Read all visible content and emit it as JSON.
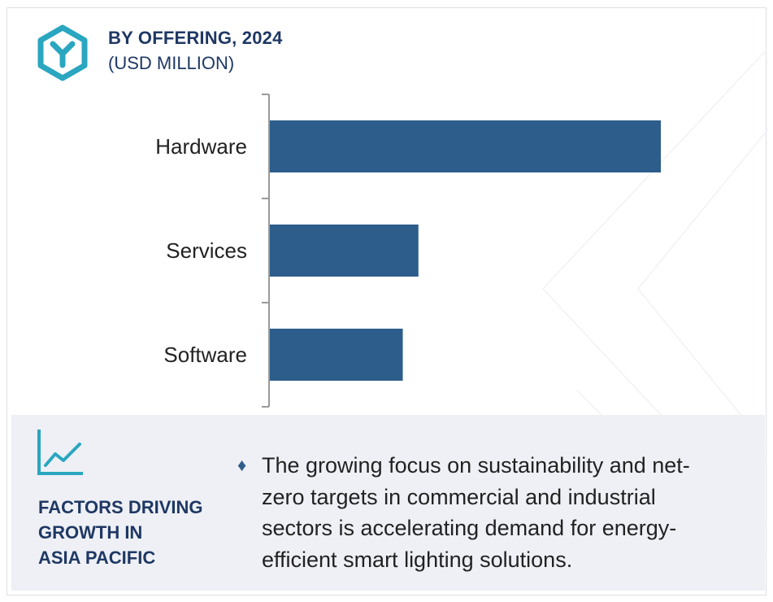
{
  "header": {
    "title": "BY OFFERING, 2024",
    "subtitle": "(USD MILLION)",
    "logo_icon": "hexagon-y-logo-icon"
  },
  "colors": {
    "bar": "#2d5d8b",
    "title": "#1f3864",
    "logo": "#2aa6c0",
    "panel_bg": "#eef0f5"
  },
  "chart_data": {
    "type": "bar",
    "orientation": "horizontal",
    "title": "BY OFFERING, 2024",
    "subtitle": "(USD MILLION)",
    "categories": [
      "Hardware",
      "Services",
      "Software"
    ],
    "values": [
      100,
      38,
      34
    ],
    "value_scale": "relative (no axis values printed)",
    "grid": false,
    "legend": "none"
  },
  "factors": {
    "icon": "line-chart-icon",
    "heading_lines": [
      "FACTORS DRIVING",
      "GROWTH IN",
      "ASIA PACIFIC"
    ],
    "bullet_symbol": "♦",
    "bullet_lines": [
      "The growing focus on sustainability and net-",
      "zero targets in commercial and industrial",
      "sectors is accelerating demand for energy-",
      "efficient smart lighting solutions."
    ]
  }
}
